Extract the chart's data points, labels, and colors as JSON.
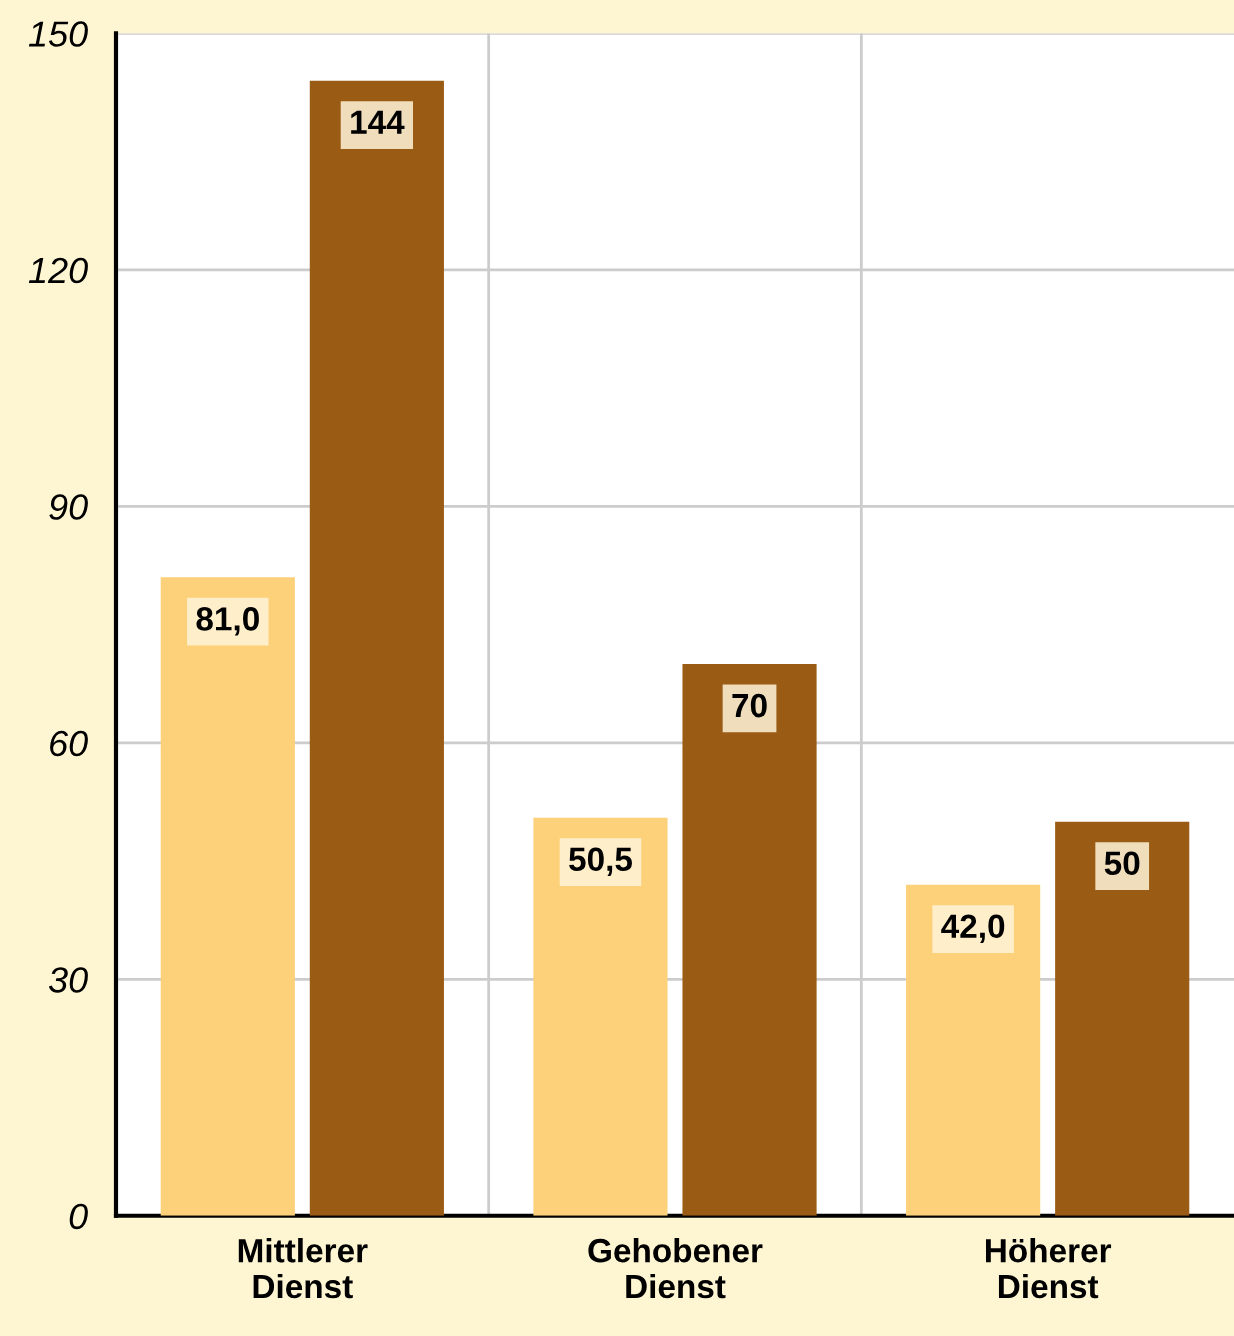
{
  "chart_data": {
    "type": "bar",
    "categories": [
      "Mittlerer\nDienst",
      "Gehobener\nDienst",
      "Höherer\nDienst"
    ],
    "series": [
      {
        "color": "#fdd07a",
        "values": [
          81.0,
          50.5,
          42.0
        ],
        "value_labels": [
          "81,0",
          "50,5",
          "42,0"
        ]
      },
      {
        "color": "#9a5c14",
        "values": [
          144,
          70,
          50
        ],
        "value_labels": [
          "144",
          "70",
          "50"
        ]
      }
    ],
    "ylim": [
      0,
      150
    ],
    "yticks": [
      0,
      30,
      60,
      90,
      120,
      150
    ],
    "grid": true,
    "legend": false
  }
}
